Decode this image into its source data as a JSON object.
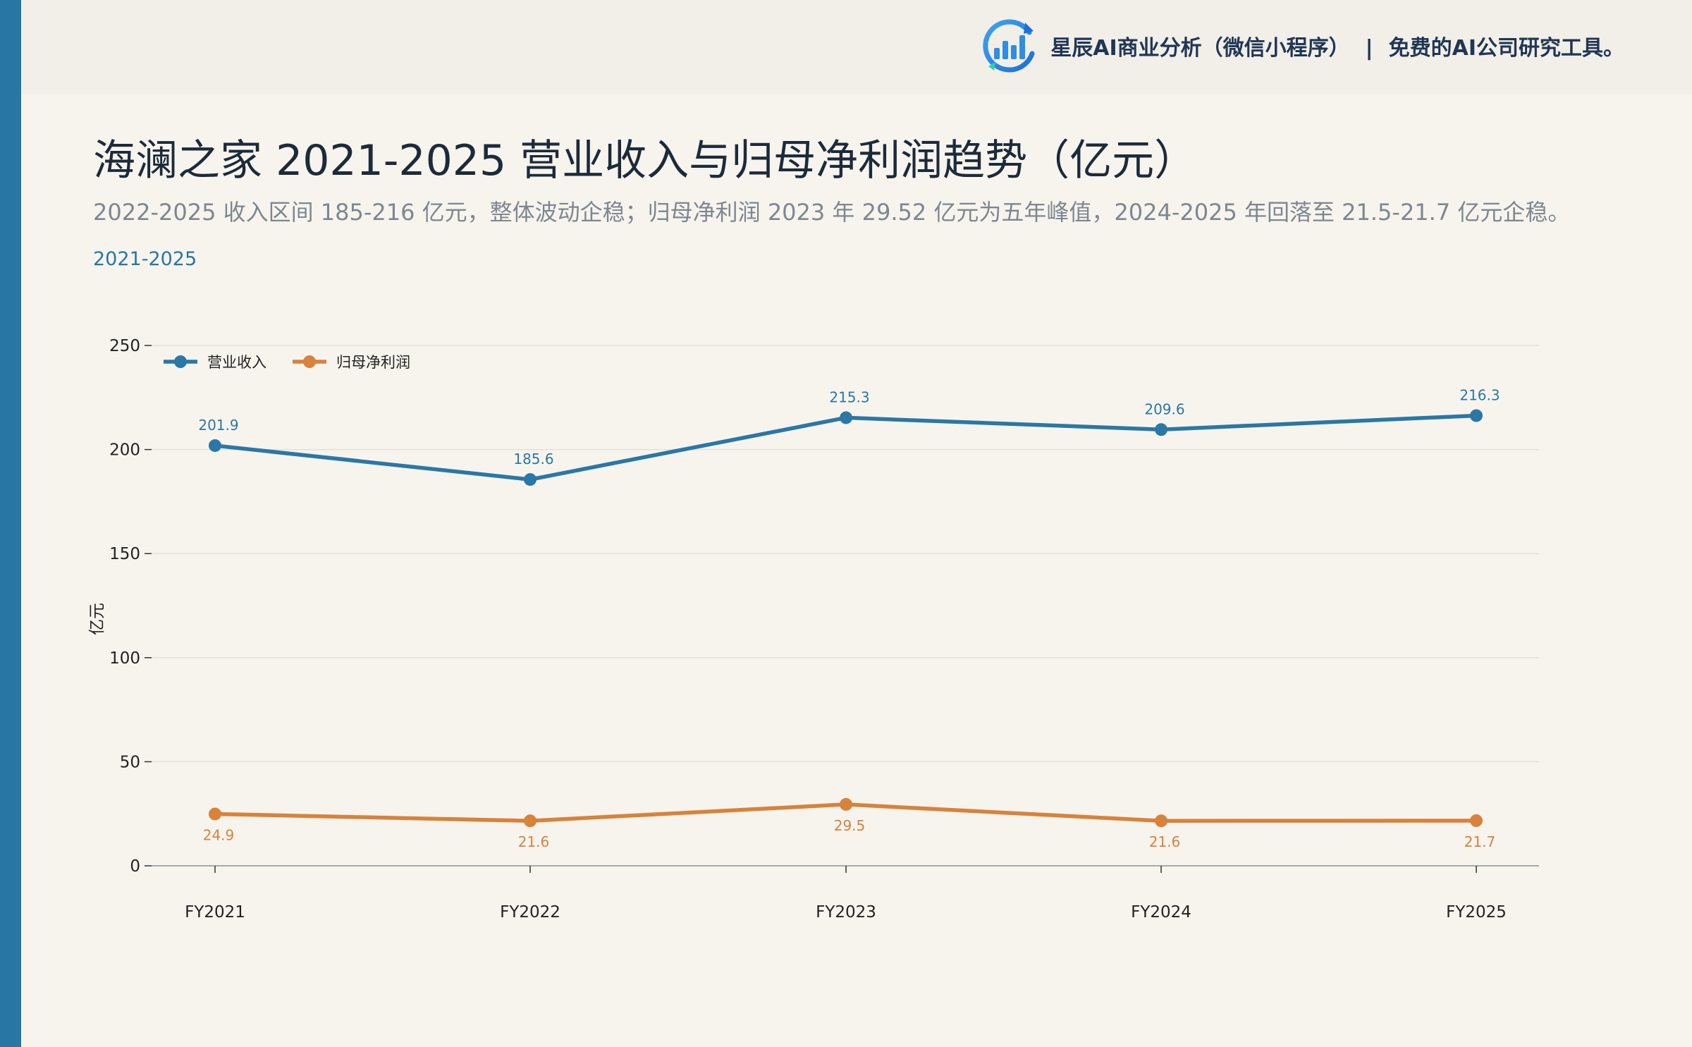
{
  "brand": {
    "name": "星辰AI商业分析（微信小程序）",
    "separator": "|",
    "tagline": "免费的AI公司研究工具。",
    "logo_icon": "bar-chart-refresh-icon",
    "logo_color": "#2f8de4"
  },
  "header": {
    "title": "海澜之家 2021-2025 营业收入与归母净利润趋势（亿元）",
    "subtitle": "2022-2025 收入区间 185-216 亿元，整体波动企稳；归母净利润 2023 年 29.52 亿元为五年峰值，2024-2025 年回落至 21.5-21.7 亿元企稳。",
    "period": "2021-2025"
  },
  "colors": {
    "accent": "#2776a4",
    "revenue": "#2b77a6",
    "profit": "#d8823b"
  },
  "chart_data": {
    "type": "line",
    "categories": [
      "FY2021",
      "FY2022",
      "FY2023",
      "FY2024",
      "FY2025"
    ],
    "series": [
      {
        "name": "营业收入",
        "color": "#2b77a6",
        "values": [
          201.9,
          185.6,
          215.3,
          209.6,
          216.3
        ],
        "labels": [
          "201.9",
          "185.6",
          "215.3",
          "209.6",
          "216.3"
        ],
        "label_position": "above"
      },
      {
        "name": "归母净利润",
        "color": "#d8823b",
        "values": [
          24.9,
          21.6,
          29.5,
          21.6,
          21.7
        ],
        "labels": [
          "24.9",
          "21.6",
          "29.5",
          "21.6",
          "21.7"
        ],
        "label_position": "below"
      }
    ],
    "ylabel": "亿元",
    "ylim": [
      0,
      250
    ],
    "yticks": [
      0,
      50,
      100,
      150,
      200,
      250
    ],
    "ytick_labels": [
      "0",
      "50",
      "100",
      "150",
      "200",
      "250"
    ],
    "grid": true,
    "legend_position": "top-left"
  }
}
